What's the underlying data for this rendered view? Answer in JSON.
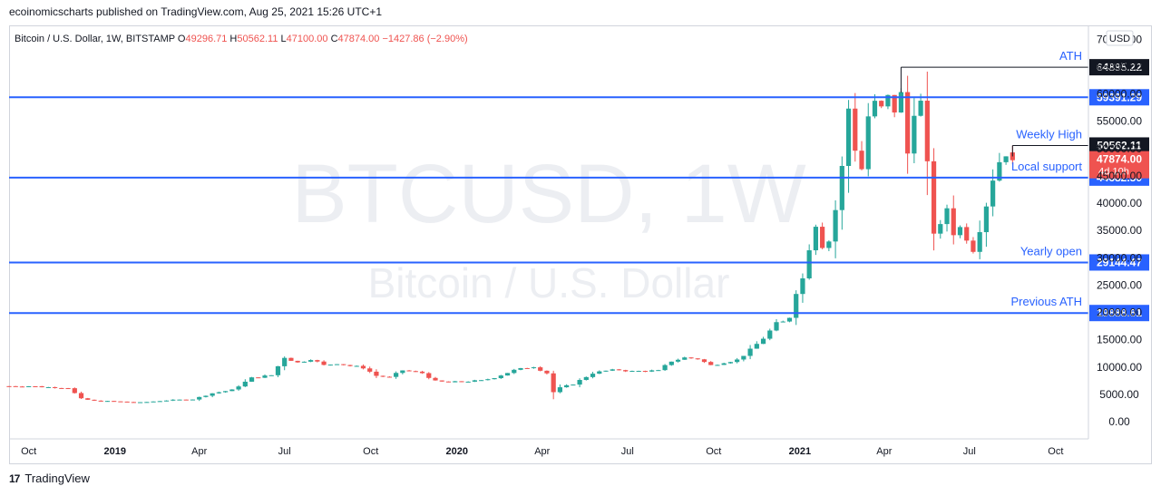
{
  "header": {
    "published": "ecoinomicscharts published on TradingView.com, Aug 25, 2021 15:26 UTC+1"
  },
  "legend": {
    "symbol": "Bitcoin / U.S. Dollar, 1W, BITSTAMP",
    "o_label": "O",
    "o_value": "49296.71",
    "h_label": "H",
    "h_value": "50562.11",
    "l_label": "L",
    "l_value": "47100.00",
    "c_label": "C",
    "c_value": "47874.00",
    "change": "−1427.86 (−2.90%)"
  },
  "watermark": {
    "ticker": "BTCUSD, 1W",
    "name": "Bitcoin / U.S. Dollar"
  },
  "footer": {
    "brand": "TradingView",
    "logo": "17"
  },
  "colors": {
    "up": "#26a69a",
    "down": "#ef5350",
    "level": "#2962ff",
    "text_level": "#2962ff"
  },
  "chart_data": {
    "type": "candlestick",
    "title": "Bitcoin / U.S. Dollar, 1W, BITSTAMP",
    "currency": "USD",
    "ylim": [
      -5000,
      70000
    ],
    "y_ticks": [
      0,
      5000,
      10000,
      15000,
      20000,
      25000,
      30000,
      35000,
      40000,
      45000,
      50000,
      55000,
      60000,
      65000,
      70000
    ],
    "y_tick_labels": [
      "0.00",
      "5000.00",
      "10000.00",
      "15000.00",
      "20000.00",
      "25000.00",
      "30000.00",
      "35000.00",
      "40000.00",
      "45000.00",
      "50000.00",
      "55000.00",
      "60000.00",
      "65000.00",
      "70000.00"
    ],
    "x_ticks": [
      {
        "label": "Oct",
        "date": "2018-10-01",
        "bold": false
      },
      {
        "label": "2019",
        "date": "2019-01-01",
        "bold": true
      },
      {
        "label": "Apr",
        "date": "2019-04-01",
        "bold": false
      },
      {
        "label": "Jul",
        "date": "2019-07-01",
        "bold": false
      },
      {
        "label": "Oct",
        "date": "2019-10-01",
        "bold": false
      },
      {
        "label": "2020",
        "date": "2020-01-01",
        "bold": true
      },
      {
        "label": "Apr",
        "date": "2020-04-01",
        "bold": false
      },
      {
        "label": "Jul",
        "date": "2020-07-01",
        "bold": false
      },
      {
        "label": "Oct",
        "date": "2020-10-01",
        "bold": false
      },
      {
        "label": "2021",
        "date": "2021-01-01",
        "bold": true
      },
      {
        "label": "Apr",
        "date": "2021-04-01",
        "bold": false
      },
      {
        "label": "Jul",
        "date": "2021-07-01",
        "bold": false
      },
      {
        "label": "Oct",
        "date": "2021-10-01",
        "bold": false
      }
    ],
    "x_range": [
      "2018-09-10",
      "2021-11-05"
    ],
    "first_week": "2018-09-10",
    "close_path": [
      [
        0,
        6500
      ],
      [
        3,
        6500
      ],
      [
        6,
        6300
      ],
      [
        9,
        6200
      ],
      [
        11,
        4200
      ],
      [
        13,
        3800
      ],
      [
        16,
        3700
      ],
      [
        20,
        3500
      ],
      [
        24,
        3900
      ],
      [
        28,
        4100
      ],
      [
        31,
        5200
      ],
      [
        34,
        5800
      ],
      [
        37,
        8000
      ],
      [
        40,
        8500
      ],
      [
        42,
        11800
      ],
      [
        44,
        10800
      ],
      [
        46,
        11500
      ],
      [
        48,
        10300
      ],
      [
        50,
        10700
      ],
      [
        52,
        10200
      ],
      [
        54,
        9900
      ],
      [
        56,
        8400
      ],
      [
        58,
        8100
      ],
      [
        60,
        9400
      ],
      [
        63,
        8900
      ],
      [
        65,
        7400
      ],
      [
        67,
        7200
      ],
      [
        70,
        7400
      ],
      [
        72,
        7500
      ],
      [
        74,
        8100
      ],
      [
        77,
        9400
      ],
      [
        79,
        9900
      ],
      [
        80,
        10100
      ],
      [
        82,
        8900
      ],
      [
        83,
        5400
      ],
      [
        84,
        6200
      ],
      [
        86,
        6900
      ],
      [
        89,
        8900
      ],
      [
        91,
        9300
      ],
      [
        93,
        9500
      ],
      [
        95,
        9200
      ],
      [
        97,
        9300
      ],
      [
        99,
        9300
      ],
      [
        101,
        11100
      ],
      [
        103,
        11700
      ],
      [
        105,
        11500
      ],
      [
        107,
        10300
      ],
      [
        109,
        10900
      ],
      [
        111,
        11300
      ],
      [
        113,
        13100
      ],
      [
        115,
        15300
      ],
      [
        117,
        17900
      ],
      [
        118,
        18200
      ],
      [
        119,
        19200
      ],
      [
        120,
        23800
      ],
      [
        121,
        26200
      ],
      [
        122,
        31900
      ],
      [
        123,
        36200
      ],
      [
        124,
        32300
      ],
      [
        125,
        33100
      ],
      [
        126,
        38800
      ],
      [
        127,
        46500
      ],
      [
        128,
        57400
      ],
      [
        129,
        50100
      ],
      [
        130,
        46300
      ],
      [
        131,
        55900
      ],
      [
        132,
        58100
      ],
      [
        133,
        57200
      ],
      [
        134,
        59200
      ],
      [
        135,
        57100
      ],
      [
        136,
        59800
      ],
      [
        137,
        49100
      ],
      [
        138,
        57100
      ],
      [
        139,
        58300
      ],
      [
        140,
        46800
      ],
      [
        141,
        34800
      ],
      [
        142,
        35600
      ],
      [
        143,
        39200
      ],
      [
        144,
        34600
      ],
      [
        145,
        35500
      ],
      [
        146,
        33700
      ],
      [
        147,
        31600
      ],
      [
        148,
        35400
      ],
      [
        149,
        39800
      ],
      [
        150,
        44600
      ],
      [
        151,
        47700
      ],
      [
        152,
        49300
      ],
      [
        153,
        47874
      ]
    ],
    "last_candle": {
      "open": 49296.71,
      "high": 50562.11,
      "low": 47100.0,
      "close": 47874.0
    },
    "levels": [
      {
        "name": "ATH",
        "price": 64895.22,
        "label": "64895.22",
        "color": "#131722",
        "from_week": 136,
        "type": "segment"
      },
      {
        "name": "",
        "price": 59391.29,
        "label": "59391.29",
        "color": "#2962ff",
        "type": "full"
      },
      {
        "name": "Weekly High",
        "price": 50562.11,
        "label": "50562.11",
        "color": "#131722",
        "from_week": 153,
        "type": "segment"
      },
      {
        "name": "Local support",
        "price": 44682.5,
        "label": "44682.50",
        "color": "#2962ff",
        "type": "full"
      },
      {
        "name": "Yearly open",
        "price": 29144.47,
        "label": "29144.47",
        "color": "#2962ff",
        "type": "full"
      },
      {
        "name": "Previous ATH",
        "price": 19888.61,
        "label": "19888.61",
        "color": "#2962ff",
        "type": "full"
      }
    ],
    "current_price": {
      "label": "47874.00",
      "countdown": "4d 10h",
      "color": "#ef5350"
    }
  }
}
